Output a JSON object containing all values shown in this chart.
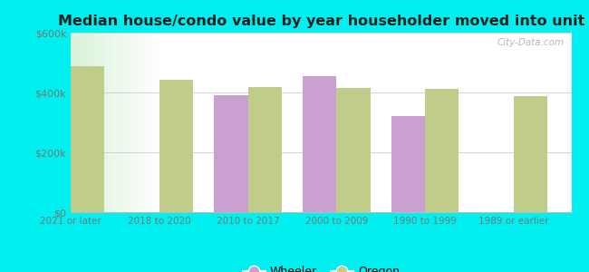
{
  "title": "Median house/condo value by year householder moved into unit",
  "categories": [
    "2021 or later",
    "2018 to 2020",
    "2010 to 2017",
    "2000 to 2009",
    "1990 to 1999",
    "1989 or earlier"
  ],
  "wheeler_values": [
    null,
    null,
    390000,
    455000,
    320000,
    null
  ],
  "oregon_values": [
    487000,
    442000,
    418000,
    415000,
    412000,
    388000
  ],
  "wheeler_color": "#c9a0d0",
  "oregon_color": "#bfcc8a",
  "background_color": "#00EFEF",
  "ylim": [
    0,
    600000
  ],
  "yticks": [
    0,
    200000,
    400000,
    600000
  ],
  "ytick_labels": [
    "$0",
    "$200k",
    "$400k",
    "$600k"
  ],
  "watermark": "City-Data.com",
  "legend_wheeler": "Wheeler",
  "legend_oregon": "Oregon",
  "bar_width": 0.38
}
